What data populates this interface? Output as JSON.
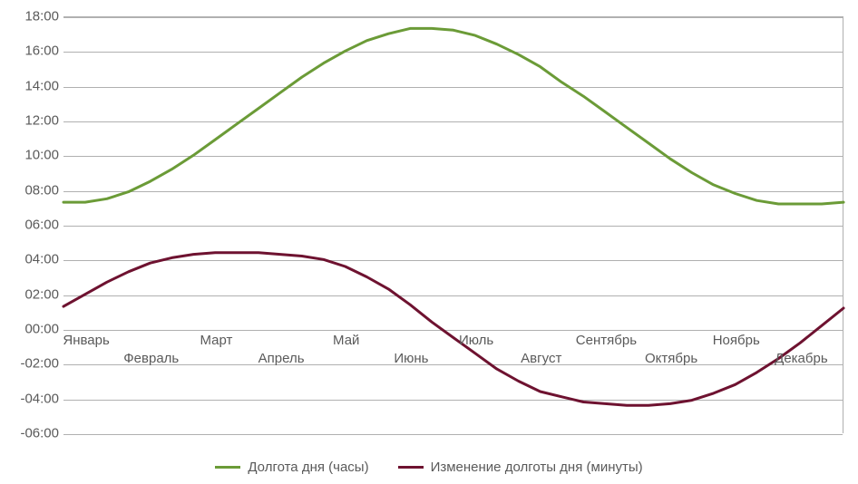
{
  "chart": {
    "type": "line",
    "background_color": "#ffffff",
    "grid_color": "#b0b0b0",
    "label_color": "#5a5a5a",
    "label_fontsize": 15,
    "ylim": [
      -6,
      18
    ],
    "ytick_step": 2,
    "y_ticks": [
      "-06:00",
      "-04:00",
      "-02:00",
      "00:00",
      "02:00",
      "04:00",
      "06:00",
      "08:00",
      "10:00",
      "12:00",
      "14:00",
      "16:00",
      "18:00"
    ],
    "x_categories": [
      "Январь",
      "Февраль",
      "Март",
      "Апрель",
      "Май",
      "Июнь",
      "Июль",
      "Август",
      "Сентябрь",
      "Октябрь",
      "Ноябрь",
      "Декабрь"
    ],
    "x_label_rows": [
      0,
      1,
      0,
      1,
      0,
      1,
      0,
      1,
      0,
      1,
      0,
      1
    ],
    "line_width": 3,
    "series": [
      {
        "name": "Долгота дня (часы)",
        "color": "#6b9b37",
        "values": [
          7.3,
          7.3,
          7.5,
          7.9,
          8.5,
          9.2,
          10.0,
          10.9,
          11.8,
          12.7,
          13.6,
          14.5,
          15.3,
          16.0,
          16.6,
          17.0,
          17.3,
          17.3,
          17.2,
          16.9,
          16.4,
          15.8,
          15.1,
          14.2,
          13.4,
          12.5,
          11.6,
          10.7,
          9.8,
          9.0,
          8.3,
          7.8,
          7.4,
          7.2,
          7.2,
          7.2,
          7.3
        ]
      },
      {
        "name": "Изменение долготы дня (минуты)",
        "color": "#6e1230",
        "values": [
          1.3,
          2.0,
          2.7,
          3.3,
          3.8,
          4.1,
          4.3,
          4.4,
          4.4,
          4.4,
          4.3,
          4.2,
          4.0,
          3.6,
          3.0,
          2.3,
          1.4,
          0.4,
          -0.5,
          -1.4,
          -2.3,
          -3.0,
          -3.6,
          -3.9,
          -4.2,
          -4.3,
          -4.4,
          -4.4,
          -4.3,
          -4.1,
          -3.7,
          -3.2,
          -2.5,
          -1.7,
          -0.8,
          0.2,
          1.2
        ]
      }
    ],
    "legend_position": "bottom"
  }
}
